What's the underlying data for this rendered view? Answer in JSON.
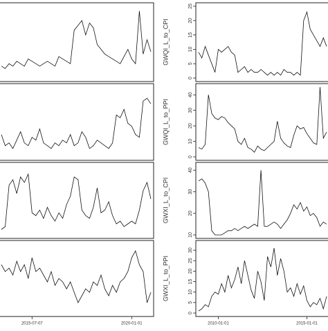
{
  "chart_data": [
    {
      "type": "line",
      "values": [
        5,
        4,
        6,
        5,
        7,
        6,
        5,
        8,
        7,
        6,
        5,
        6,
        7,
        6,
        5,
        9,
        8,
        7,
        6,
        20,
        22,
        24,
        18,
        23,
        21,
        14,
        12,
        10,
        9,
        8,
        7,
        6,
        9,
        12,
        8,
        6,
        28,
        10,
        16,
        11
      ],
      "ylim": [
        0,
        30
      ]
    },
    {
      "type": "line",
      "values": [
        8,
        4,
        5,
        3,
        6,
        9,
        5,
        4,
        7,
        6,
        10,
        5,
        4,
        3,
        5,
        4,
        6,
        5,
        8,
        4,
        5,
        9,
        7,
        3,
        4,
        6,
        5,
        4,
        3,
        5,
        15,
        14,
        17,
        12,
        11,
        8,
        7,
        20,
        21,
        19
      ],
      "ylim": [
        0,
        25
      ]
    },
    {
      "type": "line",
      "values": [
        2,
        3,
        18,
        20,
        15,
        21,
        19,
        22,
        8,
        7,
        9,
        6,
        10,
        7,
        5,
        8,
        6,
        11,
        14,
        21,
        20,
        9,
        7,
        6,
        10,
        17,
        8,
        9,
        12,
        7,
        4,
        5,
        3,
        4,
        5,
        4,
        9,
        16,
        19,
        13
      ],
      "ylim": [
        0,
        25
      ]
    },
    {
      "type": "line",
      "values": [
        14,
        12,
        13,
        11,
        15,
        12,
        14,
        10,
        16,
        12,
        13,
        11,
        9,
        12,
        8,
        10,
        9,
        7,
        9,
        6,
        3,
        5,
        7,
        6,
        9,
        8,
        11,
        7,
        5,
        8,
        6,
        9,
        10,
        12,
        16,
        18,
        14,
        12,
        3,
        6
      ],
      "ylim": [
        0,
        20
      ],
      "xticks": [
        {
          "value": 8,
          "label": "2015-07-07"
        },
        {
          "value": 34,
          "label": "2020-01-01"
        }
      ]
    },
    {
      "type": "line",
      "values": [
        9,
        7,
        11,
        8,
        5,
        2,
        10,
        9,
        10,
        11,
        9,
        8,
        2,
        3,
        4,
        2,
        3,
        2,
        2,
        3,
        2,
        1,
        2,
        1,
        2,
        1,
        3,
        2,
        2,
        1,
        2,
        1,
        20,
        23,
        17,
        15,
        13,
        11,
        14,
        11
      ],
      "ylim": [
        0,
        25
      ],
      "yticks": [
        0,
        5,
        10,
        15,
        20,
        25
      ],
      "y_label": "GWQI_L_to_CPI"
    },
    {
      "type": "line",
      "values": [
        6,
        5,
        8,
        40,
        28,
        25,
        24,
        26,
        25,
        22,
        20,
        18,
        10,
        8,
        12,
        6,
        5,
        3,
        7,
        5,
        4,
        6,
        8,
        10,
        23,
        12,
        9,
        7,
        6,
        14,
        20,
        18,
        19,
        15,
        12,
        9,
        8,
        45,
        12,
        16
      ],
      "ylim": [
        0,
        45
      ],
      "yticks": [
        0,
        10,
        20,
        30,
        40
      ],
      "y_label": "GWQI_L_to_PPI"
    },
    {
      "type": "line",
      "values": [
        35,
        36,
        34,
        30,
        12,
        10,
        10,
        10,
        11,
        12,
        12,
        13,
        12,
        13,
        14,
        13,
        14,
        15,
        14,
        40,
        14,
        14,
        15,
        16,
        15,
        13,
        15,
        17,
        20,
        24,
        22,
        25,
        21,
        23,
        19,
        20,
        18,
        14,
        16,
        15
      ],
      "ylim": [
        10,
        42
      ],
      "yticks": [
        10,
        20,
        30,
        40
      ],
      "y_label": "GWXI_L_to_CPI"
    },
    {
      "type": "line",
      "values": [
        1,
        2,
        4,
        3,
        8,
        10,
        9,
        14,
        10,
        18,
        12,
        16,
        22,
        14,
        25,
        18,
        11,
        7,
        20,
        15,
        6,
        27,
        22,
        31,
        18,
        26,
        20,
        10,
        12,
        8,
        14,
        9,
        13,
        6,
        3,
        5,
        4,
        7,
        2,
        8
      ],
      "ylim": [
        0,
        33
      ],
      "yticks": [
        0,
        5,
        10,
        15,
        20,
        25,
        30
      ],
      "y_label": "GWXI_L_to_PPI",
      "xticks": [
        {
          "value": 6,
          "label": "2010-01-01"
        },
        {
          "value": 33,
          "label": "2015-01-01"
        }
      ]
    }
  ]
}
